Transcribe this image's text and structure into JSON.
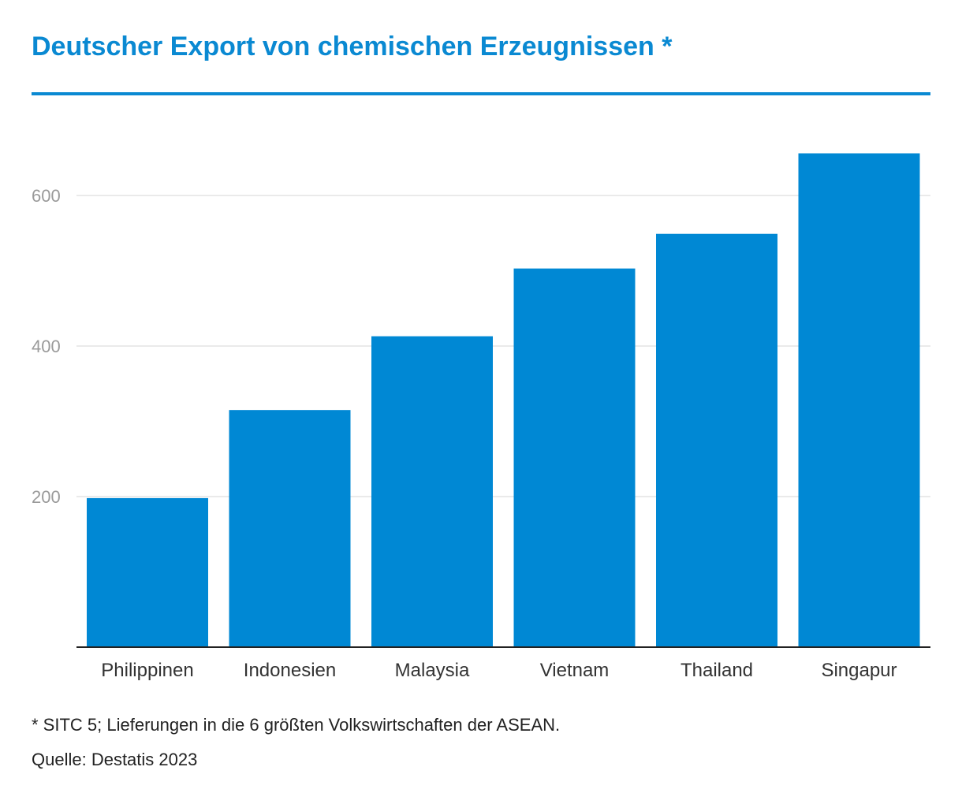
{
  "title": "Deutscher Export von chemischen Erzeugnissen *",
  "footnote": "* SITC 5; Lieferungen in die 6 größten Volkswirtschaften der ASEAN.",
  "source": "Quelle: Destatis 2023",
  "colors": {
    "accent": "#0a89d2",
    "bar": "#0088d4",
    "grid": "#e3e3e3",
    "tick_label": "#9a9a9a",
    "category_label": "#333333",
    "baseline": "#222222"
  },
  "chart_data": {
    "type": "bar",
    "title": "Deutscher Export von chemischen Erzeugnissen *",
    "xlabel": "",
    "ylabel": "",
    "categories": [
      "Philippinen",
      "Indonesien",
      "Malaysia",
      "Vietnam",
      "Thailand",
      "Singapur"
    ],
    "values": [
      198,
      315,
      413,
      503,
      549,
      656
    ],
    "ylim": [
      0,
      700
    ],
    "yticks": [
      200,
      400,
      600
    ],
    "grid": true,
    "legend": "none"
  }
}
